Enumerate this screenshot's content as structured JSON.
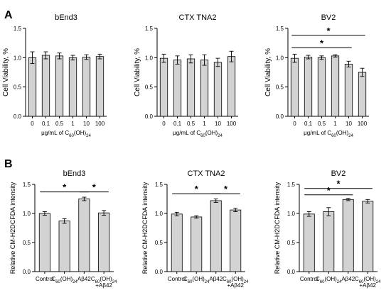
{
  "panels": [
    {
      "label": "A"
    },
    {
      "label": "B"
    }
  ],
  "chart_data": [
    {
      "type": "bar",
      "panel": "A",
      "title": "bEnd3",
      "ylabel": "Cell Viability, %",
      "xlabel": {
        "prefix": "μg/mL of C",
        "sub1": "60",
        "mid": "(OH)",
        "sub2": "24"
      },
      "categories": [
        {
          "text": "0"
        },
        {
          "text": "0.1"
        },
        {
          "text": "0.5"
        },
        {
          "text": "1"
        },
        {
          "text": "10"
        },
        {
          "text": "100"
        }
      ],
      "values": [
        1.0,
        1.04,
        1.03,
        1.0,
        1.01,
        1.02
      ],
      "errors": [
        0.1,
        0.06,
        0.05,
        0.04,
        0.04,
        0.04
      ],
      "ylim": [
        0,
        1.5
      ],
      "yticks": [
        "0.0",
        "0.5",
        "1.0",
        "1.5"
      ],
      "significance": []
    },
    {
      "type": "bar",
      "panel": "A",
      "title": "CTX TNA2",
      "ylabel": "Cell Viability, %",
      "xlabel": {
        "prefix": "μg/mL of C",
        "sub1": "60",
        "mid": "(OH)",
        "sub2": "24"
      },
      "categories": [
        {
          "text": "0"
        },
        {
          "text": "0.1"
        },
        {
          "text": "0.5"
        },
        {
          "text": "1"
        },
        {
          "text": "10"
        },
        {
          "text": "100"
        }
      ],
      "values": [
        0.99,
        0.96,
        0.98,
        0.96,
        0.92,
        1.02
      ],
      "errors": [
        0.07,
        0.07,
        0.07,
        0.09,
        0.07,
        0.09
      ],
      "ylim": [
        0,
        1.5
      ],
      "yticks": [
        "0.0",
        "0.5",
        "1.0",
        "1.5"
      ],
      "significance": []
    },
    {
      "type": "bar",
      "panel": "A",
      "title": "BV2",
      "ylabel": "Cell Viability, %",
      "xlabel": {
        "prefix": "μg/mL of C",
        "sub1": "60",
        "mid": "(OH)",
        "sub2": "24"
      },
      "categories": [
        {
          "text": "0"
        },
        {
          "text": "0.1"
        },
        {
          "text": "0.5"
        },
        {
          "text": "1"
        },
        {
          "text": "10"
        },
        {
          "text": "100"
        }
      ],
      "values": [
        0.99,
        1.01,
        1.0,
        1.03,
        0.89,
        0.75
      ],
      "errors": [
        0.07,
        0.03,
        0.03,
        0.02,
        0.05,
        0.07
      ],
      "ylim": [
        0,
        1.5
      ],
      "yticks": [
        "0.0",
        "0.5",
        "1.0",
        "1.5"
      ],
      "significance": [
        {
          "from": 0,
          "to": 5,
          "y": 1.38,
          "label": "*"
        },
        {
          "from": 0,
          "to": 4,
          "y": 1.17,
          "label": "*"
        }
      ]
    },
    {
      "type": "bar",
      "panel": "B",
      "title": "bEnd3",
      "ylabel": "Relative CM-H2DCFDA intensity",
      "categories": [
        {
          "text": "Control"
        },
        {
          "text": "C",
          "sub1": "60",
          "mid": "(OH)",
          "sub2": "24"
        },
        {
          "text": "Aβ42"
        },
        {
          "text": "C",
          "sub1": "60",
          "mid": "(OH)",
          "sub2": "24",
          "line2": "+Aβ42"
        }
      ],
      "values": [
        1.0,
        0.87,
        1.25,
        1.01
      ],
      "errors": [
        0.03,
        0.04,
        0.03,
        0.04
      ],
      "ylim": [
        0,
        1.5
      ],
      "yticks": [
        "0.0",
        "0.5",
        "1.0",
        "1.5"
      ],
      "significance": [
        {
          "from": 0,
          "to": 2,
          "y": 1.37,
          "label": "*"
        },
        {
          "from": 2,
          "to": 3,
          "y": 1.37,
          "label": "*"
        }
      ]
    },
    {
      "type": "bar",
      "panel": "B",
      "title": "CTX TNA2",
      "ylabel": "Relative CM-H2DCFDA intensity",
      "categories": [
        {
          "text": "Control"
        },
        {
          "text": "C",
          "sub1": "60",
          "mid": "(OH)",
          "sub2": "24"
        },
        {
          "text": "Aβ42"
        },
        {
          "text": "C",
          "sub1": "60",
          "mid": "(OH)",
          "sub2": "24",
          "line2": "+Aβ42"
        }
      ],
      "values": [
        0.99,
        0.94,
        1.22,
        1.06
      ],
      "errors": [
        0.03,
        0.02,
        0.03,
        0.03
      ],
      "ylim": [
        0,
        1.5
      ],
      "yticks": [
        "0.0",
        "0.5",
        "1.0",
        "1.5"
      ],
      "significance": [
        {
          "from": 0,
          "to": 2,
          "y": 1.34,
          "label": "*"
        },
        {
          "from": 2,
          "to": 3,
          "y": 1.34,
          "label": "*"
        }
      ]
    },
    {
      "type": "bar",
      "panel": "B",
      "title": "BV2",
      "ylabel": "Relative CM-H2DCFDA intensity",
      "categories": [
        {
          "text": "Control"
        },
        {
          "text": "C",
          "sub1": "60",
          "mid": "(OH)",
          "sub2": "24"
        },
        {
          "text": "Aβ42"
        },
        {
          "text": "C",
          "sub1": "60",
          "mid": "(OH)",
          "sub2": "24",
          "line2": "+Aβ42"
        }
      ],
      "values": [
        0.99,
        1.03,
        1.24,
        1.21
      ],
      "errors": [
        0.04,
        0.07,
        0.02,
        0.03
      ],
      "ylim": [
        0,
        1.5
      ],
      "yticks": [
        "0.0",
        "0.5",
        "1.0",
        "1.5"
      ],
      "significance": [
        {
          "from": 0,
          "to": 3,
          "y": 1.43,
          "label": "*"
        },
        {
          "from": 0,
          "to": 2,
          "y": 1.32,
          "label": "*"
        }
      ]
    }
  ]
}
